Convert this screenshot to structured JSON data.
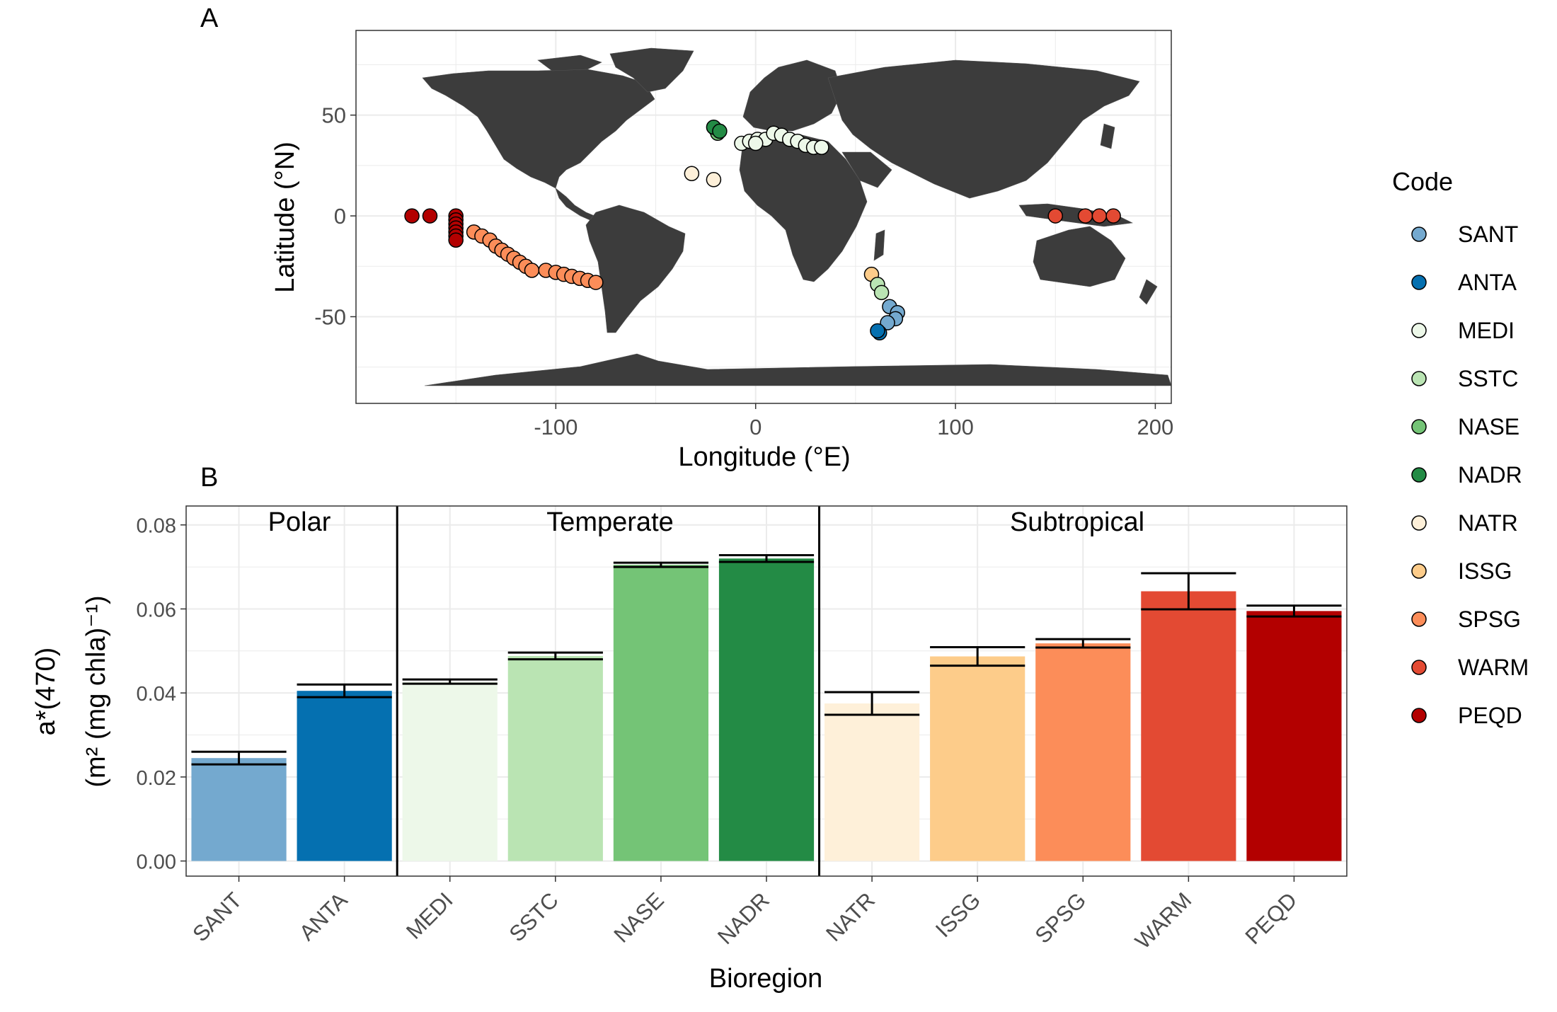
{
  "panel_a": {
    "label": "A",
    "xlabel": "Longitude (°E)",
    "ylabel": "Latitude (°N)",
    "xticks": [
      -100,
      0,
      100,
      200
    ],
    "yticks": [
      50,
      0,
      -50
    ]
  },
  "panel_b": {
    "label": "B",
    "xlabel": "Bioregion",
    "ylabel_line1": "a*(470)",
    "ylabel_line2": "(m² (mg chla)⁻¹)",
    "yticks": [
      "0.00",
      "0.02",
      "0.04",
      "0.06",
      "0.08"
    ],
    "groups": [
      "Polar",
      "Temperate",
      "Subtropical"
    ]
  },
  "legend": {
    "title": "Code",
    "items": [
      "SANT",
      "ANTA",
      "MEDI",
      "SSTC",
      "NASE",
      "NADR",
      "NATR",
      "ISSG",
      "SPSG",
      "WARM",
      "PEQD"
    ]
  },
  "colors": {
    "SANT": "#74a9cf",
    "ANTA": "#0570b0",
    "MEDI": "#edf8e9",
    "SSTC": "#bae4b3",
    "NASE": "#74c476",
    "NADR": "#238b45",
    "NATR": "#fef0d9",
    "ISSG": "#fdcc8a",
    "SPSG": "#fc8d59",
    "WARM": "#e34a33",
    "PEQD": "#b30000",
    "land": "#3c3c3c",
    "panel_bg": "#ffffff",
    "grid": "#ebebeb"
  },
  "chart_data": [
    {
      "type": "scatter",
      "xlim": [
        -200,
        208
      ],
      "ylim": [
        -93,
        92
      ],
      "grid": true,
      "legend_placement": "right",
      "series": [
        {
          "name": "PEQD",
          "points": [
            [
              -172,
              0
            ],
            [
              -163,
              0
            ],
            [
              -150,
              0
            ],
            [
              -150,
              -2
            ],
            [
              -150,
              -4
            ],
            [
              -150,
              -6
            ],
            [
              -150,
              -8
            ],
            [
              -150,
              -10
            ],
            [
              -150,
              -12
            ]
          ]
        },
        {
          "name": "SPSG",
          "points": [
            [
              -141,
              -8
            ],
            [
              -137,
              -10
            ],
            [
              -133,
              -12
            ],
            [
              -130,
              -15
            ],
            [
              -127,
              -17
            ],
            [
              -124,
              -19
            ],
            [
              -121,
              -21
            ],
            [
              -118,
              -23
            ],
            [
              -115,
              -25
            ],
            [
              -112,
              -27
            ],
            [
              -105,
              -27
            ],
            [
              -100,
              -28
            ],
            [
              -96,
              -29
            ],
            [
              -92,
              -30
            ],
            [
              -88,
              -31
            ],
            [
              -84,
              -32
            ],
            [
              -80,
              -33
            ]
          ]
        },
        {
          "name": "NATR",
          "points": [
            [
              -32,
              21
            ],
            [
              -21,
              18
            ]
          ]
        },
        {
          "name": "NASE",
          "points": [
            [
              -20,
              43
            ],
            [
              -19,
              41
            ]
          ]
        },
        {
          "name": "NADR",
          "points": [
            [
              -21,
              44
            ],
            [
              -18,
              42
            ]
          ]
        },
        {
          "name": "MEDI",
          "points": [
            [
              -7,
              36
            ],
            [
              -3,
              37
            ],
            [
              1,
              38
            ],
            [
              5,
              38
            ],
            [
              9,
              41
            ],
            [
              13,
              40
            ],
            [
              17,
              38
            ],
            [
              21,
              37
            ],
            [
              25,
              35
            ],
            [
              29,
              34
            ],
            [
              33,
              34
            ],
            [
              0,
              36
            ]
          ]
        },
        {
          "name": "ISSG",
          "points": [
            [
              58,
              -29
            ]
          ]
        },
        {
          "name": "SSTC",
          "points": [
            [
              61,
              -34
            ],
            [
              63,
              -38
            ]
          ]
        },
        {
          "name": "SANT",
          "points": [
            [
              67,
              -45
            ],
            [
              71,
              -48
            ],
            [
              70,
              -51
            ],
            [
              66,
              -53
            ]
          ]
        },
        {
          "name": "ANTA",
          "points": [
            [
              62,
              -58
            ],
            [
              61,
              -57
            ]
          ]
        },
        {
          "name": "WARM",
          "points": [
            [
              150,
              0
            ],
            [
              165,
              0
            ],
            [
              172,
              0
            ],
            [
              179,
              0
            ]
          ]
        }
      ]
    },
    {
      "type": "bar",
      "categories": [
        "SANT",
        "ANTA",
        "MEDI",
        "SSTC",
        "NASE",
        "NADR",
        "NATR",
        "ISSG",
        "SPSG",
        "WARM",
        "PEQD"
      ],
      "values": [
        0.0245,
        0.0405,
        0.0427,
        0.0488,
        0.0705,
        0.072,
        0.0375,
        0.0487,
        0.0518,
        0.0642,
        0.0595
      ],
      "errors": [
        0.0015,
        0.0015,
        0.0005,
        0.0008,
        0.0005,
        0.0008,
        0.0027,
        0.0022,
        0.001,
        0.0043,
        0.0013
      ],
      "ylim": [
        -0.0036,
        0.0845
      ],
      "group_dividers_after": [
        "ANTA",
        "NADR"
      ],
      "grid": true
    }
  ]
}
